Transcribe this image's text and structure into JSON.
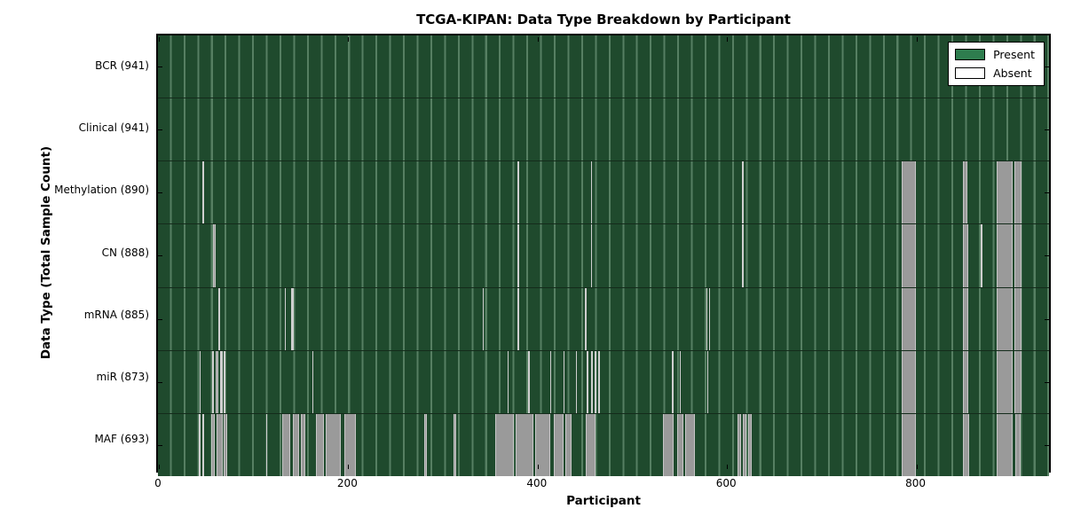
{
  "title": "TCGA-KIPAN: Data Type Breakdown by Participant",
  "x_axis_label": "Participant",
  "y_axis_label": "Data Type (Total Sample Count)",
  "legend": {
    "present_label": "Present",
    "absent_label": "Absent"
  },
  "colors": {
    "present_fill": "#1f4a2d",
    "present_grid_line": "#567f62",
    "legend_present": "#2e7d4e",
    "legend_absent": "#ffffff",
    "absent_wide": "#9a9a9a",
    "absent_edge": "#c6c6c6",
    "absent_thin": "#cfcfcf",
    "frame": "#000000"
  },
  "chart_data": {
    "type": "heatmap",
    "title": "TCGA-KIPAN: Data Type Breakdown by Participant",
    "xlabel": "Participant",
    "ylabel": "Data Type (Total Sample Count)",
    "x_range": [
      0,
      941
    ],
    "xticks": [
      0,
      200,
      400,
      600,
      800
    ],
    "legend_entries": [
      "Present",
      "Absent"
    ],
    "legend_position": "upper right",
    "total_participants": 941,
    "rows": [
      {
        "name": "BCR",
        "label": "BCR (941)",
        "count": 941,
        "absent_ranges": []
      },
      {
        "name": "Clinical",
        "label": "Clinical (941)",
        "count": 941,
        "absent_ranges": []
      },
      {
        "name": "Methylation",
        "label": "Methylation (890)",
        "count": 890,
        "absent_ranges": [
          [
            47,
            48
          ],
          [
            380,
            381
          ],
          [
            457,
            458
          ],
          [
            617,
            618
          ],
          [
            785,
            800
          ],
          [
            850,
            855
          ],
          [
            886,
            903
          ],
          [
            904,
            912
          ]
        ]
      },
      {
        "name": "CN",
        "label": "CN (888)",
        "count": 888,
        "absent_ranges": [
          [
            58,
            61
          ],
          [
            380,
            381
          ],
          [
            457,
            458
          ],
          [
            617,
            618
          ],
          [
            785,
            800
          ],
          [
            850,
            856
          ],
          [
            869,
            870
          ],
          [
            886,
            903
          ],
          [
            904,
            912
          ]
        ]
      },
      {
        "name": "mRNA",
        "label": "mRNA (885)",
        "count": 885,
        "absent_ranges": [
          [
            64,
            65
          ],
          [
            134,
            135
          ],
          [
            141,
            143
          ],
          [
            343,
            344
          ],
          [
            380,
            381
          ],
          [
            451,
            453
          ],
          [
            579,
            580
          ],
          [
            582,
            583
          ],
          [
            785,
            800
          ],
          [
            850,
            856
          ],
          [
            886,
            903
          ],
          [
            904,
            912
          ]
        ]
      },
      {
        "name": "miR",
        "label": "miR (873)",
        "count": 873,
        "absent_ranges": [
          [
            44,
            45
          ],
          [
            57,
            59
          ],
          [
            61,
            64
          ],
          [
            66,
            68
          ],
          [
            69,
            71
          ],
          [
            163,
            164
          ],
          [
            369,
            370
          ],
          [
            391,
            392
          ],
          [
            414,
            415
          ],
          [
            428,
            429
          ],
          [
            441,
            442
          ],
          [
            453,
            455
          ],
          [
            457,
            459
          ],
          [
            461,
            463
          ],
          [
            465,
            467
          ],
          [
            543,
            544
          ],
          [
            551,
            552
          ],
          [
            580,
            581
          ],
          [
            785,
            800
          ],
          [
            850,
            856
          ],
          [
            886,
            903
          ],
          [
            904,
            912
          ]
        ]
      },
      {
        "name": "MAF",
        "label": "MAF (693)",
        "count": 693,
        "absent_ranges": [
          [
            43,
            45
          ],
          [
            47,
            49
          ],
          [
            56,
            60
          ],
          [
            62,
            68
          ],
          [
            69,
            73
          ],
          [
            114,
            115
          ],
          [
            131,
            140
          ],
          [
            142,
            149
          ],
          [
            151,
            156
          ],
          [
            167,
            175
          ],
          [
            177,
            193
          ],
          [
            197,
            209
          ],
          [
            281,
            284
          ],
          [
            312,
            315
          ],
          [
            356,
            376
          ],
          [
            378,
            396
          ],
          [
            398,
            414
          ],
          [
            418,
            428
          ],
          [
            430,
            437
          ],
          [
            452,
            462
          ],
          [
            533,
            545
          ],
          [
            548,
            555
          ],
          [
            557,
            567
          ],
          [
            612,
            616
          ],
          [
            618,
            621
          ],
          [
            623,
            627
          ],
          [
            785,
            800
          ],
          [
            850,
            857
          ],
          [
            886,
            903
          ],
          [
            905,
            911
          ]
        ]
      }
    ]
  }
}
